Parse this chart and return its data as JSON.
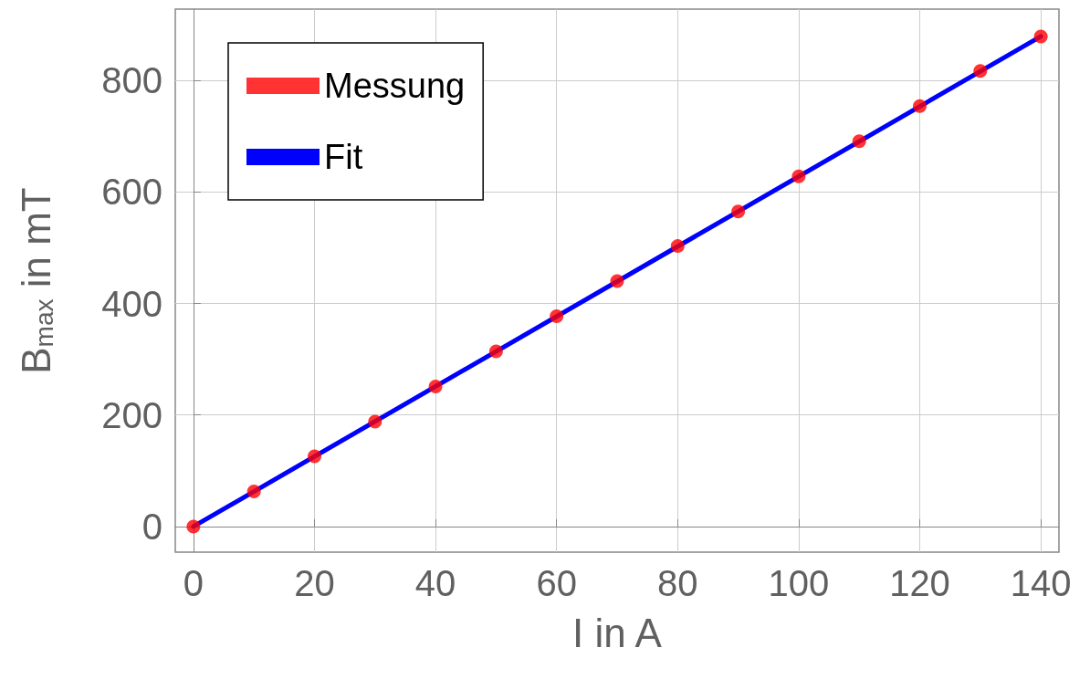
{
  "chart_data": {
    "type": "scatter",
    "xlabel": "I in A",
    "ylabel": "B$_{max}$ in mT",
    "xlim": [
      -3,
      143
    ],
    "ylim": [
      -46,
      928
    ],
    "xticks": [
      0,
      20,
      40,
      60,
      80,
      100,
      120,
      140
    ],
    "yticks": [
      0,
      200,
      400,
      600,
      800
    ],
    "grid": true,
    "legend": "top left",
    "series": [
      {
        "name": "Messung",
        "marker": "circle",
        "color": "#ff0000",
        "x": [
          0,
          10,
          20,
          30,
          40,
          50,
          60,
          70,
          80,
          90,
          100,
          110,
          120,
          130,
          140
        ],
        "values": [
          0,
          63,
          126,
          188,
          251,
          314,
          377,
          440,
          503,
          565,
          628,
          691,
          754,
          817,
          879
        ]
      },
      {
        "name": "Fit",
        "type": "line",
        "marker": "none",
        "line_style": "solid",
        "color": "#0000ff",
        "x": [
          0,
          140
        ],
        "values": [
          0,
          879
        ]
      }
    ]
  }
}
